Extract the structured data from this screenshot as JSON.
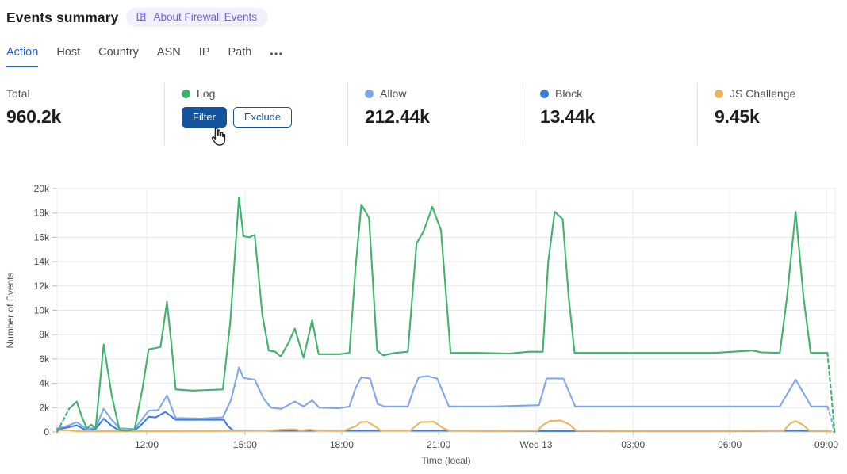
{
  "header": {
    "title": "Events summary",
    "badge_label": "About Firewall Events",
    "badge_text_color": "#6c63d8",
    "badge_bg_color": "#f1f0fc"
  },
  "tabs": {
    "items": [
      {
        "id": "action",
        "label": "Action",
        "active": true
      },
      {
        "id": "host",
        "label": "Host",
        "active": false
      },
      {
        "id": "country",
        "label": "Country",
        "active": false
      },
      {
        "id": "asn",
        "label": "ASN",
        "active": false
      },
      {
        "id": "ip",
        "label": "IP",
        "active": false
      },
      {
        "id": "path",
        "label": "Path",
        "active": false
      }
    ],
    "more_label": "•••",
    "active_color": "#2061c5"
  },
  "stats": {
    "cards": [
      {
        "id": "total",
        "label": "Total",
        "value": "960.2k"
      },
      {
        "id": "log",
        "label": "Log",
        "dot_color": "#3db36c",
        "buttons": [
          {
            "id": "filter",
            "label": "Filter",
            "style": "primary"
          },
          {
            "id": "exclude",
            "label": "Exclude",
            "style": "secondary"
          }
        ]
      },
      {
        "id": "allow",
        "label": "Allow",
        "dot_color": "#7fa8ea",
        "value": "212.44k"
      },
      {
        "id": "block",
        "label": "Block",
        "dot_color": "#3c7ddd",
        "value": "13.44k"
      },
      {
        "id": "js-challenge",
        "label": "JS Challenge",
        "dot_color": "#f0b45f",
        "value": "9.45k"
      }
    ],
    "accent_color": "#16539e"
  },
  "chart_data": {
    "type": "line",
    "xlabel": "Time (local)",
    "ylabel": "Number of Events",
    "x_unit": "hours from chart start (~09:10 local), 15-min buckets",
    "y_unit": "thousands of events",
    "x_range": [
      0,
      24.22
    ],
    "ylim": [
      0,
      20
    ],
    "grid": true,
    "legend_position": "in stat cards above chart",
    "x_ticks": [
      {
        "label": "12:00",
        "t": 2.79
      },
      {
        "label": "15:00",
        "t": 5.85
      },
      {
        "label": "18:00",
        "t": 8.86
      },
      {
        "label": "21:00",
        "t": 11.88
      },
      {
        "label": "Wed 13",
        "t": 14.91
      },
      {
        "label": "03:00",
        "t": 17.93
      },
      {
        "label": "06:00",
        "t": 20.94
      },
      {
        "label": "09:00",
        "t": 23.95
      }
    ],
    "y_ticks": [
      {
        "label": "0",
        "v": 0
      },
      {
        "label": "2k",
        "v": 2
      },
      {
        "label": "4k",
        "v": 4
      },
      {
        "label": "6k",
        "v": 6
      },
      {
        "label": "8k",
        "v": 8
      },
      {
        "label": "10k",
        "v": 10
      },
      {
        "label": "12k",
        "v": 12
      },
      {
        "label": "14k",
        "v": 14
      },
      {
        "label": "16k",
        "v": 16
      },
      {
        "label": "18k",
        "v": 18
      },
      {
        "label": "20k",
        "v": 20
      }
    ],
    "series": [
      {
        "name": "Block",
        "color": "#3c7ddd",
        "dash_head": 0,
        "dash_tail": 1,
        "points": [
          [
            0,
            0.2
          ],
          [
            0.37,
            0.4
          ],
          [
            0.61,
            0.55
          ],
          [
            0.93,
            0.1
          ],
          [
            1.2,
            0.25
          ],
          [
            1.45,
            1.1
          ],
          [
            1.7,
            0.5
          ],
          [
            1.94,
            0.1
          ],
          [
            2.41,
            0.1
          ],
          [
            2.66,
            0.7
          ],
          [
            2.85,
            1.25
          ],
          [
            3.07,
            1.2
          ],
          [
            3.37,
            1.65
          ],
          [
            3.69,
            1.0
          ],
          [
            4.47,
            1.0
          ],
          [
            5.19,
            1.0
          ],
          [
            5.31,
            0.5
          ],
          [
            5.48,
            0.12
          ],
          [
            6.93,
            0.1
          ],
          [
            9.39,
            0.1
          ],
          [
            11.85,
            0.1
          ],
          [
            14.31,
            0.08
          ],
          [
            16.77,
            0.08
          ],
          [
            19.23,
            0.08
          ],
          [
            21.69,
            0.08
          ],
          [
            22.99,
            0.1
          ],
          [
            23.98,
            0.08
          ],
          [
            24.2,
            0
          ]
        ]
      },
      {
        "name": "Allow",
        "color": "#7fa8ea",
        "dash_head": 0,
        "dash_tail": 2,
        "points": [
          [
            0,
            0.3
          ],
          [
            0.37,
            0.55
          ],
          [
            0.61,
            0.8
          ],
          [
            0.93,
            0.25
          ],
          [
            1.2,
            0.35
          ],
          [
            1.45,
            1.9
          ],
          [
            1.7,
            1.0
          ],
          [
            1.94,
            0.3
          ],
          [
            2.41,
            0.25
          ],
          [
            2.66,
            1.1
          ],
          [
            2.85,
            1.75
          ],
          [
            3.15,
            1.8
          ],
          [
            3.42,
            3.0
          ],
          [
            3.69,
            1.15
          ],
          [
            4.47,
            1.1
          ],
          [
            5.16,
            1.2
          ],
          [
            5.41,
            2.6
          ],
          [
            5.66,
            5.3
          ],
          [
            5.8,
            4.45
          ],
          [
            6.15,
            4.3
          ],
          [
            6.44,
            2.7
          ],
          [
            6.66,
            2.0
          ],
          [
            6.98,
            1.9
          ],
          [
            7.4,
            2.5
          ],
          [
            7.67,
            2.1
          ],
          [
            7.94,
            2.6
          ],
          [
            8.16,
            2.0
          ],
          [
            8.78,
            1.95
          ],
          [
            9.1,
            2.1
          ],
          [
            9.29,
            3.6
          ],
          [
            9.47,
            4.5
          ],
          [
            9.74,
            4.4
          ],
          [
            9.98,
            2.3
          ],
          [
            10.18,
            2.1
          ],
          [
            10.92,
            2.1
          ],
          [
            11.11,
            3.6
          ],
          [
            11.26,
            4.5
          ],
          [
            11.53,
            4.6
          ],
          [
            11.83,
            4.4
          ],
          [
            12.2,
            2.1
          ],
          [
            13.57,
            2.1
          ],
          [
            15.0,
            2.2
          ],
          [
            15.24,
            4.4
          ],
          [
            15.76,
            4.4
          ],
          [
            16.13,
            2.1
          ],
          [
            18.0,
            2.1
          ],
          [
            20.46,
            2.1
          ],
          [
            22.5,
            2.1
          ],
          [
            22.99,
            4.3
          ],
          [
            23.48,
            2.1
          ],
          [
            23.98,
            2.1
          ],
          [
            24.1,
            1.1
          ],
          [
            24.2,
            0
          ]
        ]
      },
      {
        "name": "JS Challenge",
        "color": "#f0b45f",
        "dash_head": 0,
        "dash_tail": 0,
        "points": [
          [
            0,
            0.12
          ],
          [
            0.3,
            0.15
          ],
          [
            0.66,
            0.06
          ],
          [
            2.02,
            0.06
          ],
          [
            4.47,
            0.08
          ],
          [
            6.44,
            0.1
          ],
          [
            7.13,
            0.2
          ],
          [
            7.38,
            0.22
          ],
          [
            7.6,
            0.12
          ],
          [
            7.87,
            0.2
          ],
          [
            8.11,
            0.1
          ],
          [
            8.9,
            0.08
          ],
          [
            9.32,
            0.5
          ],
          [
            9.44,
            0.8
          ],
          [
            9.64,
            0.85
          ],
          [
            9.88,
            0.5
          ],
          [
            10.08,
            0.1
          ],
          [
            11.0,
            0.1
          ],
          [
            11.16,
            0.5
          ],
          [
            11.31,
            0.8
          ],
          [
            11.73,
            0.85
          ],
          [
            12.02,
            0.3
          ],
          [
            12.22,
            0.1
          ],
          [
            13.57,
            0.08
          ],
          [
            14.95,
            0.1
          ],
          [
            15.14,
            0.6
          ],
          [
            15.34,
            0.9
          ],
          [
            15.69,
            0.95
          ],
          [
            15.96,
            0.6
          ],
          [
            16.16,
            0.1
          ],
          [
            18.0,
            0.08
          ],
          [
            20.46,
            0.08
          ],
          [
            22.62,
            0.1
          ],
          [
            22.82,
            0.7
          ],
          [
            22.99,
            0.9
          ],
          [
            23.21,
            0.6
          ],
          [
            23.43,
            0.1
          ],
          [
            24.1,
            0.07
          ]
        ]
      },
      {
        "name": "Log",
        "color": "#3db36c",
        "dash_head": 1,
        "dash_tail": 2,
        "points": [
          [
            0,
            0
          ],
          [
            0.37,
            1.9
          ],
          [
            0.61,
            2.5
          ],
          [
            0.79,
            1.1
          ],
          [
            0.93,
            0.3
          ],
          [
            1.06,
            0.6
          ],
          [
            1.2,
            0.3
          ],
          [
            1.45,
            7.2
          ],
          [
            1.7,
            3.0
          ],
          [
            1.94,
            0.15
          ],
          [
            2.19,
            0.1
          ],
          [
            2.41,
            0.2
          ],
          [
            2.66,
            3.6
          ],
          [
            2.85,
            6.8
          ],
          [
            3.07,
            6.9
          ],
          [
            3.22,
            7.0
          ],
          [
            3.42,
            10.7
          ],
          [
            3.57,
            6.9
          ],
          [
            3.69,
            3.5
          ],
          [
            4.23,
            3.4
          ],
          [
            4.72,
            3.45
          ],
          [
            5.16,
            3.5
          ],
          [
            5.39,
            9.0
          ],
          [
            5.66,
            19.3
          ],
          [
            5.8,
            16.1
          ],
          [
            5.98,
            16.0
          ],
          [
            6.15,
            16.2
          ],
          [
            6.39,
            9.6
          ],
          [
            6.59,
            6.7
          ],
          [
            6.79,
            6.6
          ],
          [
            6.96,
            6.2
          ],
          [
            7.2,
            7.3
          ],
          [
            7.4,
            8.5
          ],
          [
            7.67,
            6.1
          ],
          [
            7.94,
            9.2
          ],
          [
            8.14,
            6.4
          ],
          [
            8.46,
            6.4
          ],
          [
            8.8,
            6.4
          ],
          [
            9.1,
            6.5
          ],
          [
            9.29,
            13.5
          ],
          [
            9.47,
            18.7
          ],
          [
            9.71,
            17.6
          ],
          [
            9.96,
            6.7
          ],
          [
            10.15,
            6.3
          ],
          [
            10.52,
            6.5
          ],
          [
            10.92,
            6.6
          ],
          [
            11.19,
            15.5
          ],
          [
            11.41,
            16.5
          ],
          [
            11.68,
            18.5
          ],
          [
            11.95,
            16.6
          ],
          [
            12.25,
            6.5
          ],
          [
            13.08,
            6.5
          ],
          [
            14.06,
            6.45
          ],
          [
            14.7,
            6.6
          ],
          [
            15.12,
            6.6
          ],
          [
            15.29,
            14.0
          ],
          [
            15.49,
            18.1
          ],
          [
            15.74,
            17.5
          ],
          [
            15.93,
            11.0
          ],
          [
            16.11,
            6.5
          ],
          [
            16.77,
            6.5
          ],
          [
            18.0,
            6.5
          ],
          [
            19.23,
            6.5
          ],
          [
            20.46,
            6.5
          ],
          [
            21.64,
            6.7
          ],
          [
            21.93,
            6.55
          ],
          [
            22.5,
            6.5
          ],
          [
            22.72,
            11.0
          ],
          [
            22.99,
            18.1
          ],
          [
            23.24,
            11.0
          ],
          [
            23.46,
            6.5
          ],
          [
            23.98,
            6.5
          ],
          [
            24.1,
            3.2
          ],
          [
            24.2,
            0
          ]
        ]
      }
    ],
    "colors": {
      "grid": "#e7e7e7",
      "tick_text": "#444444",
      "axis_title": "#555555"
    }
  }
}
